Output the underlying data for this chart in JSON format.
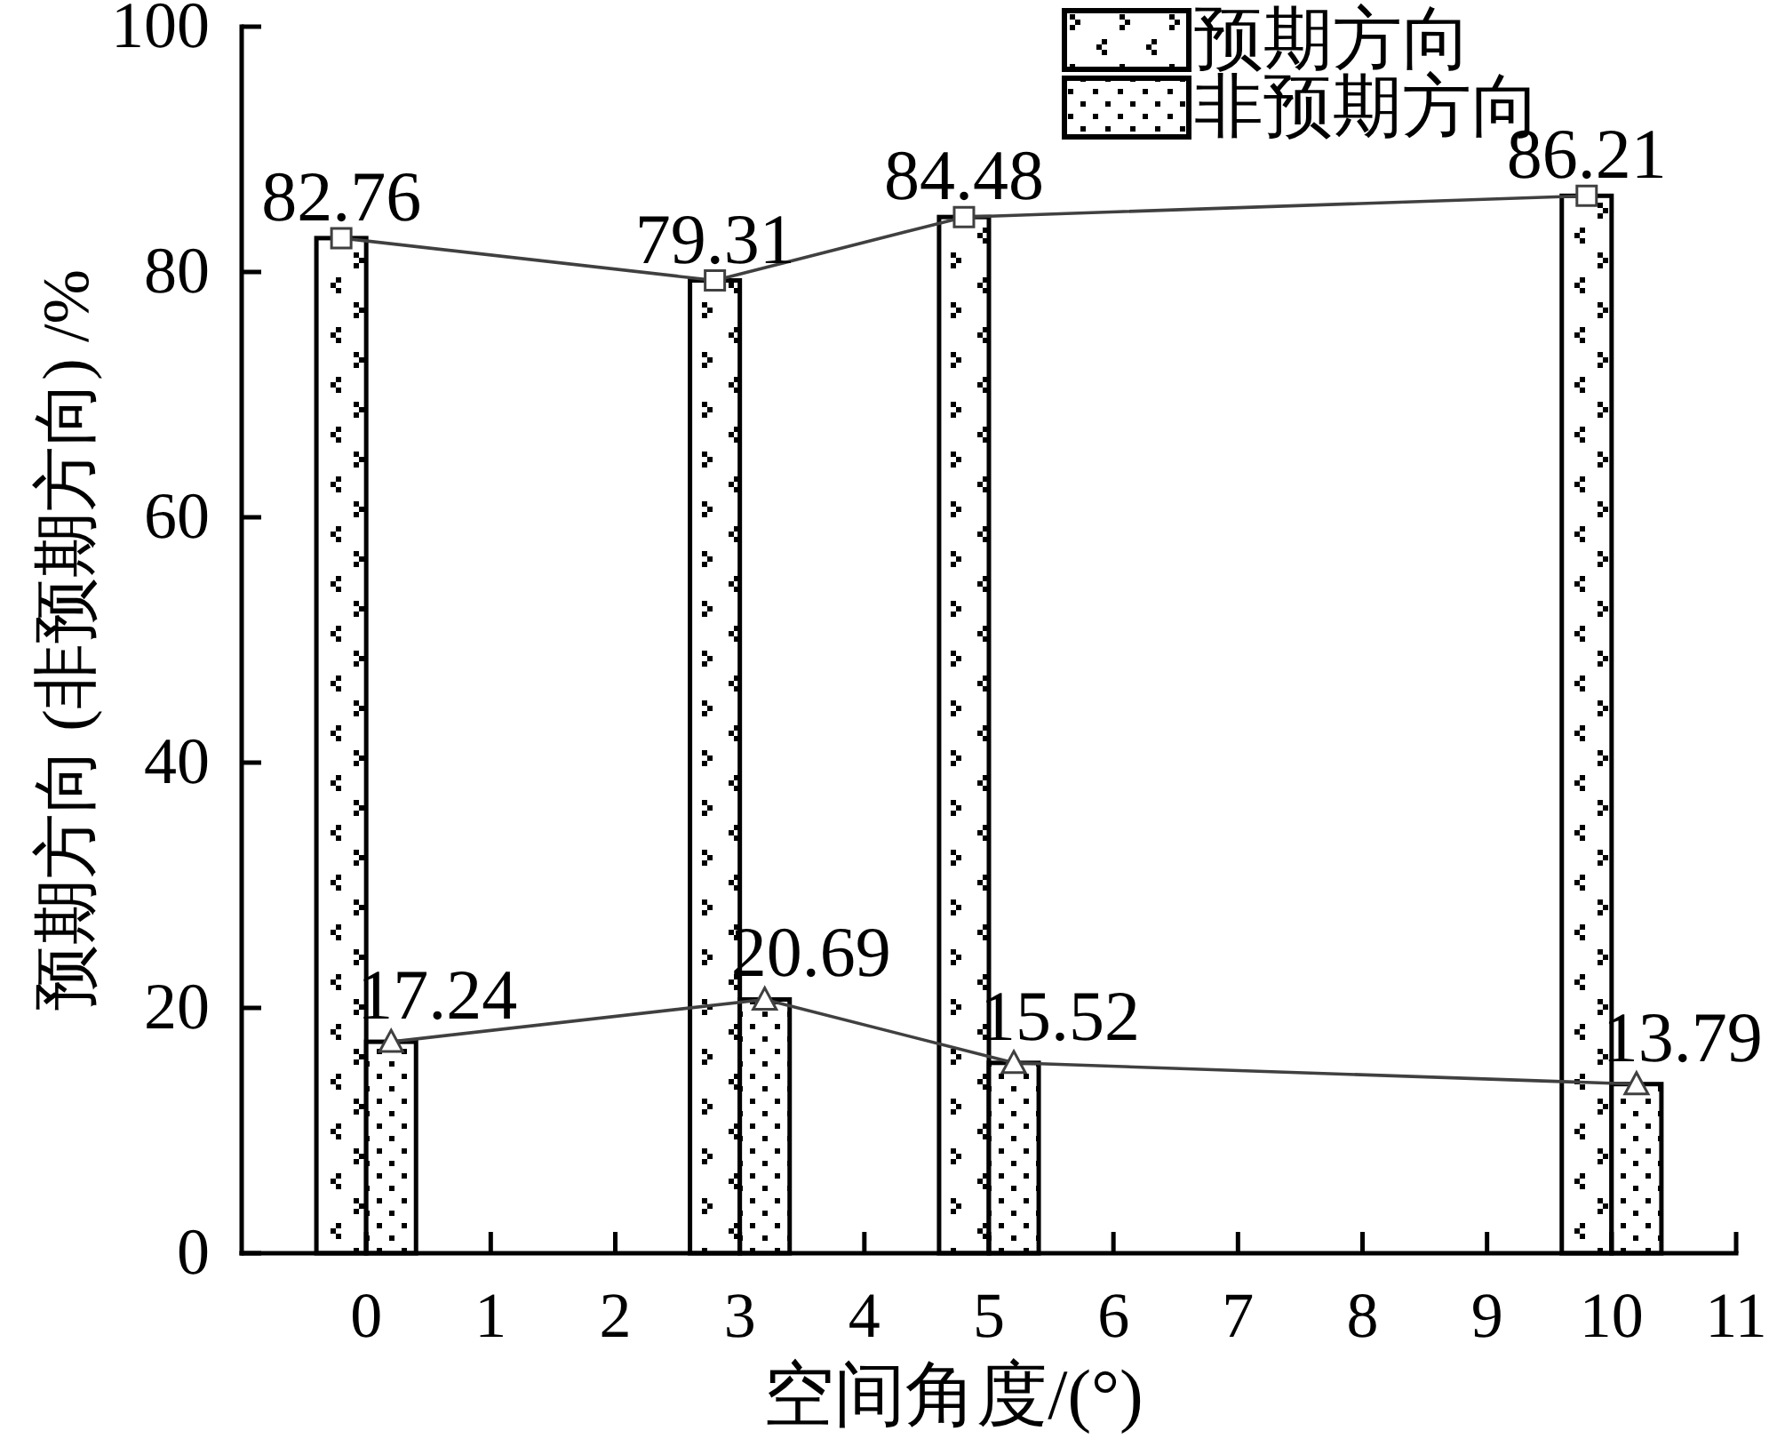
{
  "chart_data": {
    "type": "bar",
    "xlabel": "空间角度/(°)",
    "ylabel": "预期方向 (非预期方向) /%",
    "x": [
      0,
      3,
      5,
      10
    ],
    "series": [
      {
        "name": "预期方向",
        "color": "#000000",
        "values": [
          82.76,
          79.31,
          84.48,
          86.21
        ]
      },
      {
        "name": "非预期方向",
        "color": "#000000",
        "values": [
          17.24,
          20.69,
          15.52,
          13.79
        ]
      },
      {
        "type": "line",
        "color": "#404040",
        "marker": "square",
        "x": [
          -0.2,
          2.8,
          4.8,
          9.8
        ],
        "values": [
          82.76,
          79.31,
          84.48,
          86.21
        ],
        "value_labels": [
          "82.76",
          "79.31",
          "84.48",
          "86.21"
        ]
      },
      {
        "type": "line",
        "color": "#404040",
        "marker": "triangle",
        "x": [
          0.2,
          3.2,
          5.2,
          10.2
        ],
        "values": [
          17.24,
          20.69,
          15.52,
          13.79
        ],
        "value_labels": [
          "17.24",
          "20.69",
          "15.52",
          "13.79"
        ]
      }
    ],
    "xlim": [
      -1,
      11
    ],
    "xticks": [
      0,
      1,
      2,
      3,
      4,
      5,
      6,
      7,
      8,
      9,
      10,
      11
    ],
    "ylim": [
      0,
      100
    ],
    "yticks": [
      0,
      20,
      40,
      60,
      80,
      100
    ],
    "grid": false,
    "legend": "top right",
    "line_style": "solid"
  }
}
